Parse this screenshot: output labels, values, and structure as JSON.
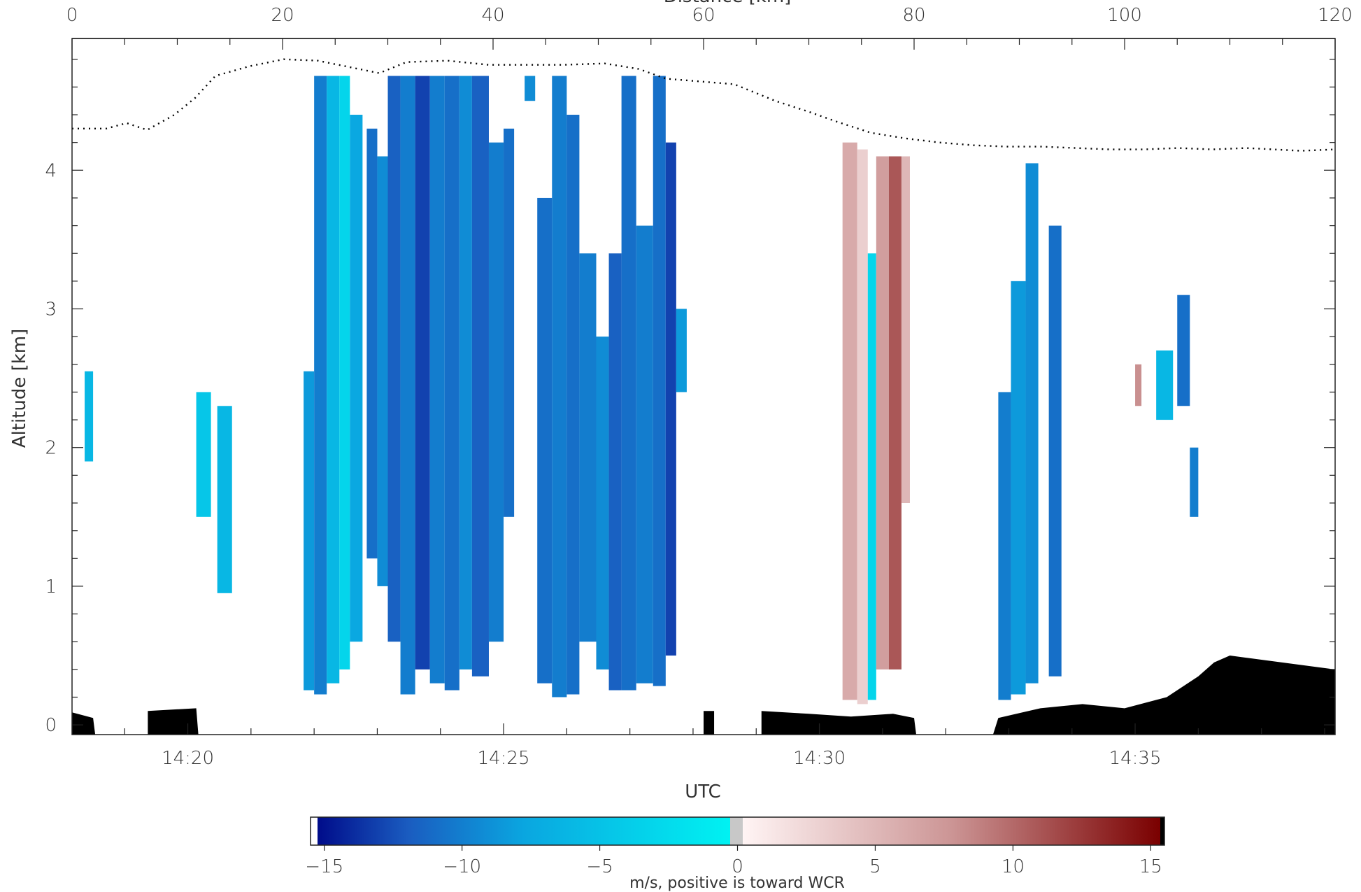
{
  "chart_data": {
    "type": "heatmap",
    "title": "",
    "top_axis": {
      "label": "Distance [km]",
      "range": [
        0,
        120
      ],
      "ticks": [
        0,
        20,
        40,
        60,
        80,
        100,
        120
      ]
    },
    "x_axis": {
      "label": "UTC",
      "range_minutes": [
        "14:18:10",
        "14:38:10"
      ],
      "tick_labels": [
        "14:20",
        "14:25",
        "14:30",
        "14:35"
      ]
    },
    "y_axis": {
      "label": "Altitude [km]",
      "range": [
        -0.07,
        4.95
      ],
      "ticks": [
        0,
        1,
        2,
        3,
        4
      ]
    },
    "colorbar": {
      "label": "m/s, positive is toward WCR",
      "range": [
        -15.5,
        15.5
      ],
      "ticks": [
        -15,
        -10,
        -5,
        0,
        5,
        10,
        15
      ],
      "colors": {
        "negative_strong": "#000c8a",
        "negative_mid": "#1a73c8",
        "negative_weak": "#00f2f2",
        "zero": "#c8c8c8",
        "positive_weak": "#fff0f0",
        "positive_mid": "#c98a8a",
        "positive_strong": "#7a0000"
      }
    },
    "flight_altitude": {
      "style": "dotted",
      "points": [
        [
          0,
          4.3
        ],
        [
          5,
          4.3
        ],
        [
          8,
          4.34
        ],
        [
          11,
          4.29
        ],
        [
          15,
          4.4
        ],
        [
          18,
          4.52
        ],
        [
          21,
          4.68
        ],
        [
          26,
          4.75
        ],
        [
          31,
          4.8
        ],
        [
          36,
          4.79
        ],
        [
          41,
          4.74
        ],
        [
          45,
          4.7
        ],
        [
          49,
          4.78
        ],
        [
          55,
          4.79
        ],
        [
          61,
          4.76
        ],
        [
          66,
          4.76
        ],
        [
          72,
          4.76
        ],
        [
          78,
          4.77
        ],
        [
          83,
          4.73
        ],
        [
          87,
          4.66
        ],
        [
          92,
          4.64
        ],
        [
          97,
          4.62
        ],
        [
          103,
          4.5
        ],
        [
          108,
          4.42
        ],
        [
          112,
          4.35
        ],
        [
          117,
          4.27
        ],
        [
          122,
          4.23
        ],
        [
          127,
          4.2
        ],
        [
          132,
          4.18
        ],
        [
          137,
          4.17
        ],
        [
          142,
          4.17
        ],
        [
          147,
          4.16
        ],
        [
          152,
          4.15
        ],
        [
          157,
          4.15
        ],
        [
          162,
          4.16
        ],
        [
          167,
          4.15
        ],
        [
          172,
          4.16
        ],
        [
          176,
          4.15
        ],
        [
          180,
          4.14
        ],
        [
          185,
          4.15
        ]
      ]
    },
    "columns": [
      {
        "x0": 1.2,
        "x1": 2.0,
        "y0": 1.9,
        "y1": 2.55,
        "v": -4
      },
      {
        "x0": 11.8,
        "x1": 13.2,
        "y0": 1.5,
        "y1": 2.4,
        "v": -3
      },
      {
        "x0": 13.8,
        "x1": 15.2,
        "y0": 0.95,
        "y1": 2.3,
        "v": -4
      },
      {
        "x0": 22.0,
        "x1": 23.0,
        "y0": 0.25,
        "y1": 2.55,
        "v": -6
      },
      {
        "x0": 23.0,
        "x1": 24.2,
        "y0": 0.22,
        "y1": 4.68,
        "v": -8
      },
      {
        "x0": 24.2,
        "x1": 25.4,
        "y0": 0.3,
        "y1": 4.68,
        "v": -4
      },
      {
        "x0": 25.4,
        "x1": 26.4,
        "y0": 0.4,
        "y1": 4.68,
        "v": -2
      },
      {
        "x0": 26.4,
        "x1": 27.6,
        "y0": 0.6,
        "y1": 4.4,
        "v": -5
      },
      {
        "x0": 28.0,
        "x1": 29.0,
        "y0": 1.2,
        "y1": 4.3,
        "v": -9
      },
      {
        "x0": 29.0,
        "x1": 30.0,
        "y0": 1.0,
        "y1": 4.1,
        "v": -7
      },
      {
        "x0": 30.0,
        "x1": 31.2,
        "y0": 0.6,
        "y1": 4.68,
        "v": -10
      },
      {
        "x0": 31.2,
        "x1": 32.6,
        "y0": 0.22,
        "y1": 4.68,
        "v": -8
      },
      {
        "x0": 32.6,
        "x1": 34.0,
        "y0": 0.4,
        "y1": 4.68,
        "v": -12
      },
      {
        "x0": 34.0,
        "x1": 35.4,
        "y0": 0.3,
        "y1": 4.68,
        "v": -8
      },
      {
        "x0": 35.4,
        "x1": 36.8,
        "y0": 0.25,
        "y1": 4.68,
        "v": -9
      },
      {
        "x0": 36.8,
        "x1": 38.0,
        "y0": 0.4,
        "y1": 4.68,
        "v": -7
      },
      {
        "x0": 38.0,
        "x1": 39.6,
        "y0": 0.35,
        "y1": 4.68,
        "v": -10
      },
      {
        "x0": 39.6,
        "x1": 41.0,
        "y0": 0.6,
        "y1": 4.2,
        "v": -8
      },
      {
        "x0": 41.0,
        "x1": 42.0,
        "y0": 1.5,
        "y1": 4.3,
        "v": -9
      },
      {
        "x0": 43.0,
        "x1": 44.0,
        "y0": 4.5,
        "y1": 4.68,
        "v": -7
      },
      {
        "x0": 44.2,
        "x1": 45.6,
        "y0": 0.3,
        "y1": 3.8,
        "v": -9
      },
      {
        "x0": 45.6,
        "x1": 47.0,
        "y0": 0.2,
        "y1": 4.68,
        "v": -8
      },
      {
        "x0": 47.0,
        "x1": 48.2,
        "y0": 0.22,
        "y1": 4.4,
        "v": -9
      },
      {
        "x0": 48.2,
        "x1": 49.8,
        "y0": 0.6,
        "y1": 3.4,
        "v": -8
      },
      {
        "x0": 49.8,
        "x1": 51.0,
        "y0": 0.4,
        "y1": 2.8,
        "v": -7
      },
      {
        "x0": 51.0,
        "x1": 52.2,
        "y0": 0.25,
        "y1": 3.4,
        "v": -10
      },
      {
        "x0": 52.2,
        "x1": 53.6,
        "y0": 0.25,
        "y1": 4.68,
        "v": -9
      },
      {
        "x0": 53.6,
        "x1": 55.2,
        "y0": 0.3,
        "y1": 3.6,
        "v": -8
      },
      {
        "x0": 55.2,
        "x1": 56.4,
        "y0": 0.28,
        "y1": 4.68,
        "v": -9
      },
      {
        "x0": 56.4,
        "x1": 57.4,
        "y0": 0.5,
        "y1": 4.2,
        "v": -12
      },
      {
        "x0": 57.4,
        "x1": 58.4,
        "y0": 2.4,
        "y1": 3.0,
        "v": -6
      },
      {
        "x0": 73.2,
        "x1": 74.6,
        "y0": 0.18,
        "y1": 4.2,
        "v": 6
      },
      {
        "x0": 74.6,
        "x1": 75.6,
        "y0": 0.15,
        "y1": 4.15,
        "v": 3
      },
      {
        "x0": 75.6,
        "x1": 76.4,
        "y0": 0.18,
        "y1": 3.4,
        "v": -2
      },
      {
        "x0": 76.4,
        "x1": 77.6,
        "y0": 0.4,
        "y1": 4.1,
        "v": 7
      },
      {
        "x0": 77.6,
        "x1": 78.8,
        "y0": 0.4,
        "y1": 4.1,
        "v": 11
      },
      {
        "x0": 78.8,
        "x1": 79.6,
        "y0": 1.6,
        "y1": 4.1,
        "v": 5
      },
      {
        "x0": 88.0,
        "x1": 89.2,
        "y0": 0.18,
        "y1": 2.4,
        "v": -8
      },
      {
        "x0": 89.2,
        "x1": 90.6,
        "y0": 0.22,
        "y1": 3.2,
        "v": -6
      },
      {
        "x0": 90.6,
        "x1": 91.8,
        "y0": 0.3,
        "y1": 4.05,
        "v": -7
      },
      {
        "x0": 92.8,
        "x1": 94.0,
        "y0": 0.35,
        "y1": 3.6,
        "v": -9
      },
      {
        "x0": 101.0,
        "x1": 101.6,
        "y0": 2.3,
        "y1": 2.6,
        "v": 8
      },
      {
        "x0": 103.0,
        "x1": 104.6,
        "y0": 2.2,
        "y1": 2.7,
        "v": -4
      },
      {
        "x0": 105.0,
        "x1": 106.2,
        "y0": 2.3,
        "y1": 3.1,
        "v": -9
      },
      {
        "x0": 106.2,
        "x1": 107.0,
        "y0": 1.5,
        "y1": 2.0,
        "v": -8
      }
    ]
  }
}
